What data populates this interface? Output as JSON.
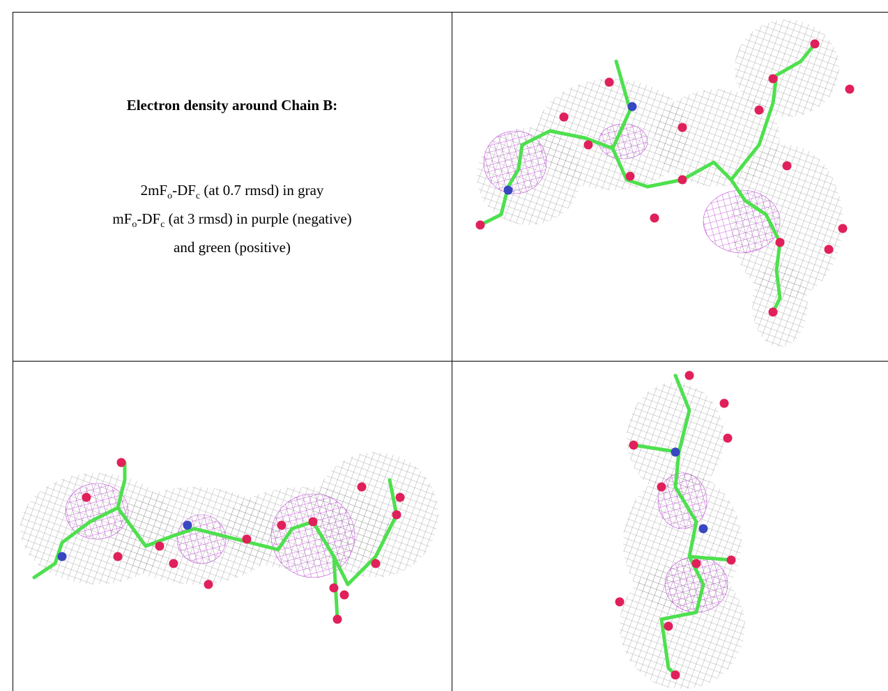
{
  "caption": {
    "title": "Electron density around Chain B:",
    "lines": [
      [
        {
          "t": "2mF"
        },
        {
          "sub": "o"
        },
        {
          "t": "-DF"
        },
        {
          "sub": "c"
        },
        {
          "t": " (at 0.7 rmsd) in gray"
        }
      ],
      [
        {
          "t": "mF"
        },
        {
          "sub": "o"
        },
        {
          "t": "-DF"
        },
        {
          "sub": "c"
        },
        {
          "t": " (at 3 rmsd) in purple (negative)"
        }
      ],
      [
        {
          "t": "and green (positive)"
        }
      ]
    ]
  }
}
